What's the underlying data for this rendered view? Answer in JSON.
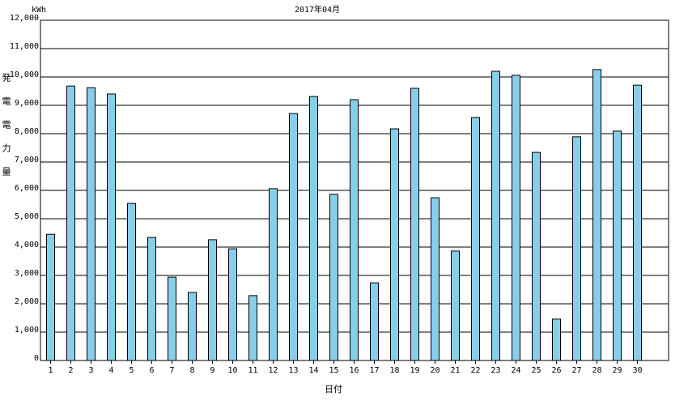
{
  "chart_data": {
    "type": "bar",
    "title": "2017年04月",
    "y_unit": "kWh",
    "ylabel": "発電電力量",
    "xlabel": "日付",
    "categories": [
      "1",
      "2",
      "3",
      "4",
      "5",
      "6",
      "7",
      "8",
      "9",
      "10",
      "11",
      "12",
      "13",
      "14",
      "15",
      "16",
      "17",
      "18",
      "19",
      "20",
      "21",
      "22",
      "23",
      "24",
      "25",
      "26",
      "27",
      "28",
      "29",
      "30"
    ],
    "values": [
      4450,
      9680,
      9620,
      9400,
      5540,
      4340,
      2940,
      2400,
      4260,
      3940,
      2290,
      6060,
      8710,
      9310,
      5860,
      9200,
      2740,
      8170,
      9600,
      5740,
      3860,
      8570,
      10200,
      10060,
      7340,
      1460,
      7890,
      10260,
      8090,
      9710
    ],
    "color": "#87cee9",
    "edge_color": "#000000",
    "ylim": [
      0,
      12000
    ],
    "yticks": [
      0,
      {
        "value": 1000,
        "label": "1,000"
      },
      {
        "value": 2000,
        "label": "2,000"
      },
      {
        "value": 3000,
        "label": "3,000"
      },
      {
        "value": 4000,
        "label": "4,000"
      },
      {
        "value": 5000,
        "label": "5,000"
      },
      {
        "value": 6000,
        "label": "6,000"
      },
      {
        "value": 7000,
        "label": "7,000"
      },
      {
        "value": 8000,
        "label": "8,000"
      },
      {
        "value": 9000,
        "label": "9,000"
      },
      {
        "value": 10000,
        "label": "10,000"
      },
      {
        "value": 11000,
        "label": "11,000"
      },
      {
        "value": 12000,
        "label": "12,000"
      }
    ],
    "grid": true
  }
}
